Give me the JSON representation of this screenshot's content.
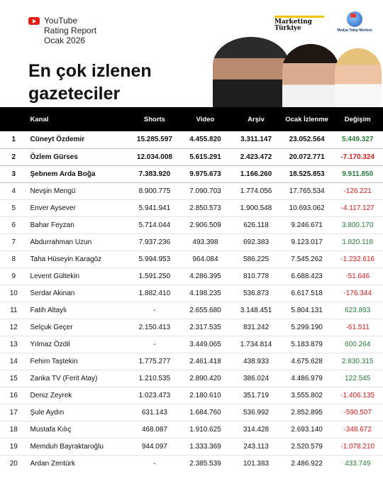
{
  "header": {
    "youtube_line1": "YouTube",
    "youtube_line2": "Rating Report",
    "youtube_line3": "Ocak 2026",
    "title_line1": "En çok izlenen",
    "title_line2": "gazeteciler",
    "mt_logo_line1": "Marketing",
    "mt_logo_line2": "Türkiye",
    "mtm_logo": "Medya Takip Merkezi"
  },
  "colors": {
    "accent_yellow": "#f5c400",
    "positive": "#2c7d3e",
    "negative": "#d21d1d",
    "header_bg": "#000000"
  },
  "table": {
    "columns": [
      "",
      "Kanal",
      "Shorts",
      "Video",
      "Arşiv",
      "Ocak İzlenme",
      "Değişim"
    ],
    "rows": [
      {
        "rank": "1",
        "name": "Cüneyt Özdemir",
        "shorts": "15.285.597",
        "video": "4.455.820",
        "arsiv": "3.311.147",
        "ocak": "23.052.564",
        "degisim": "5.449.327",
        "sign": "pos"
      },
      {
        "rank": "2",
        "name": "Özlem Gürses",
        "shorts": "12.034.008",
        "video": "5.615.291",
        "arsiv": "2.423.472",
        "ocak": "20.072.771",
        "degisim": "-7.170.324",
        "sign": "neg"
      },
      {
        "rank": "3",
        "name": "Şebnem Arda Boğa",
        "shorts": "7.383.920",
        "video": "9.975.673",
        "arsiv": "1.166.260",
        "ocak": "18.525.853",
        "degisim": "9.911.850",
        "sign": "pos"
      },
      {
        "rank": "4",
        "name": "Nevşin Mengü",
        "shorts": "8.900.775",
        "video": "7.090.703",
        "arsiv": "1.774.056",
        "ocak": "17.765.534",
        "degisim": "-126.221",
        "sign": "neg"
      },
      {
        "rank": "5",
        "name": "Enver Aysever",
        "shorts": "5.941.941",
        "video": "2.850.573",
        "arsiv": "1.900.548",
        "ocak": "10.693.062",
        "degisim": "-4.117.127",
        "sign": "neg"
      },
      {
        "rank": "6",
        "name": "Bahar Feyzan",
        "shorts": "5.714.044",
        "video": "2.906.509",
        "arsiv": "626.118",
        "ocak": "9.246.671",
        "degisim": "3.800.170",
        "sign": "pos"
      },
      {
        "rank": "7",
        "name": "Abdurrahman Uzun",
        "shorts": "7.937.236",
        "video": "493.398",
        "arsiv": "692.383",
        "ocak": "9.123.017",
        "degisim": "1.820.118",
        "sign": "pos"
      },
      {
        "rank": "8",
        "name": "Taha Hüseyin Karagöz",
        "shorts": "5.994.953",
        "video": "964.084",
        "arsiv": "586.225",
        "ocak": "7.545.262",
        "degisim": "-1.232.616",
        "sign": "neg"
      },
      {
        "rank": "9",
        "name": "Levent Gültekin",
        "shorts": "1.591.250",
        "video": "4.286.395",
        "arsiv": "810.778",
        "ocak": "6.688.423",
        "degisim": "-51.646",
        "sign": "neg"
      },
      {
        "rank": "10",
        "name": "Serdar Akinan",
        "shorts": "1.882.410",
        "video": "4.198.235",
        "arsiv": "536.873",
        "ocak": "6.617.518",
        "degisim": "-176.344",
        "sign": "neg"
      },
      {
        "rank": "11",
        "name": "Fatih Altaylı",
        "shorts": "-",
        "video": "2.655.680",
        "arsiv": "3.148.451",
        "ocak": "5.804.131",
        "degisim": "623.893",
        "sign": "pos"
      },
      {
        "rank": "12",
        "name": "Selçuk Geçer",
        "shorts": "2.150.413",
        "video": "2.317.535",
        "arsiv": "831.242",
        "ocak": "5.299.190",
        "degisim": "-61.511",
        "sign": "neg"
      },
      {
        "rank": "13",
        "name": "Yılmaz Özdil",
        "shorts": "-",
        "video": "3.449.065",
        "arsiv": "1.734.814",
        "ocak": "5.183.879",
        "degisim": "600.264",
        "sign": "pos"
      },
      {
        "rank": "14",
        "name": "Fehim Taştekin",
        "shorts": "1.775.277",
        "video": "2.461.418",
        "arsiv": "438.933",
        "ocak": "4.675.628",
        "degisim": "2.830.315",
        "sign": "pos"
      },
      {
        "rank": "15",
        "name": "Zanka TV (Ferit Atay)",
        "shorts": "1.210.535",
        "video": "2.890.420",
        "arsiv": "386.024",
        "ocak": "4.486.979",
        "degisim": "122.545",
        "sign": "pos"
      },
      {
        "rank": "16",
        "name": "Deniz Zeyrek",
        "shorts": "1.023.473",
        "video": "2.180.610",
        "arsiv": "351.719",
        "ocak": "3.555.802",
        "degisim": "-1.406.135",
        "sign": "neg"
      },
      {
        "rank": "17",
        "name": "Şule Aydın",
        "shorts": "631.143",
        "video": "1.684.760",
        "arsiv": "536.992",
        "ocak": "2.852.895",
        "degisim": "-590.507",
        "sign": "neg"
      },
      {
        "rank": "18",
        "name": "Mustafa Kılıç",
        "shorts": "468.087",
        "video": "1.910.625",
        "arsiv": "314.428",
        "ocak": "2.693.140",
        "degisim": "-348.672",
        "sign": "neg"
      },
      {
        "rank": "19",
        "name": "Memduh Bayraktaroğlu",
        "shorts": "944.097",
        "video": "1.333.369",
        "arsiv": "243.113",
        "ocak": "2.520.579",
        "degisim": "-1.078.210",
        "sign": "neg"
      },
      {
        "rank": "20",
        "name": "Ardan Zentürk",
        "shorts": "-",
        "video": "2.385.539",
        "arsiv": "101.383",
        "ocak": "2.486.922",
        "degisim": "433.749",
        "sign": "pos"
      }
    ]
  }
}
